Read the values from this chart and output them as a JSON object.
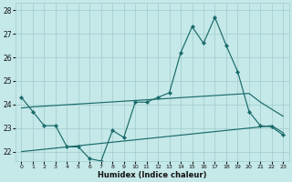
{
  "xlabel": "Humidex (Indice chaleur)",
  "background_color": "#c5e8e8",
  "grid_color": "#a0cccc",
  "line_color": "#1a6b6b",
  "x": [
    0,
    1,
    2,
    3,
    4,
    5,
    6,
    7,
    8,
    9,
    10,
    11,
    12,
    13,
    14,
    15,
    16,
    17,
    18,
    19,
    20,
    21,
    22,
    23
  ],
  "y_main": [
    24.3,
    23.7,
    23.1,
    23.1,
    22.2,
    22.2,
    21.7,
    21.6,
    22.9,
    22.6,
    24.1,
    24.1,
    24.3,
    24.5,
    26.2,
    27.3,
    26.6,
    27.7,
    26.5,
    25.4,
    23.7,
    23.1,
    23.05,
    22.7
  ],
  "y_upper_trend": [
    23.85,
    23.9,
    23.93,
    23.96,
    23.99,
    24.02,
    24.05,
    24.08,
    24.11,
    24.14,
    24.17,
    24.2,
    24.23,
    24.26,
    24.29,
    24.32,
    24.35,
    24.38,
    24.41,
    24.44,
    24.47,
    24.1,
    23.8,
    23.5
  ],
  "y_lower_trend": [
    22.0,
    22.05,
    22.1,
    22.15,
    22.2,
    22.25,
    22.3,
    22.35,
    22.4,
    22.45,
    22.5,
    22.55,
    22.6,
    22.65,
    22.7,
    22.75,
    22.8,
    22.85,
    22.9,
    22.95,
    23.0,
    23.05,
    23.1,
    22.8
  ],
  "ylim": [
    21.6,
    28.3
  ],
  "xlim": [
    -0.5,
    23.5
  ],
  "yticks": [
    22,
    23,
    24,
    25,
    26,
    27,
    28
  ],
  "xticks": [
    0,
    1,
    2,
    3,
    4,
    5,
    6,
    7,
    8,
    9,
    10,
    11,
    12,
    13,
    14,
    15,
    16,
    17,
    18,
    19,
    20,
    21,
    22,
    23
  ]
}
